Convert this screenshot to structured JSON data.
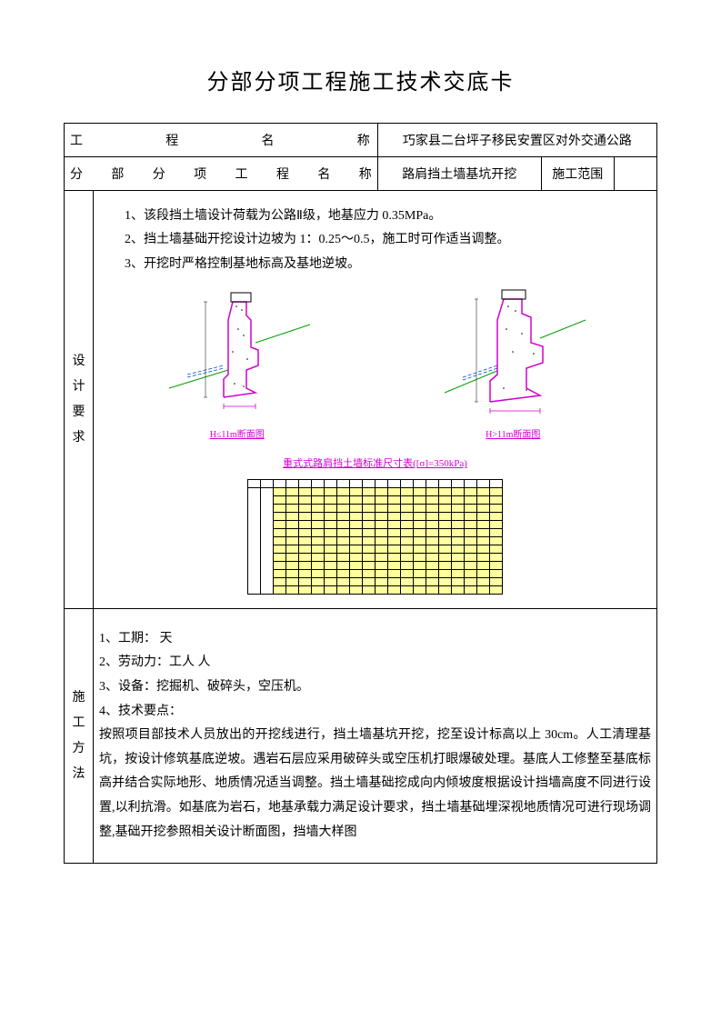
{
  "title": "分部分项工程施工技术交底卡",
  "header": {
    "label_project": "工 程 名 称",
    "value_project": "巧家县二台坪子移民安置区对外交通公路",
    "label_sub": "分部分项工程名称",
    "value_sub": "路肩挡土墙基坑开挖",
    "label_scope": "施工范围",
    "value_scope": ""
  },
  "design": {
    "side_label": "设计要求",
    "lines": [
      "1、该段挡土墙设计荷载为公路Ⅱ级，地基应力 0.35MPa。",
      "2、挡土墙基础开挖设计边坡为 1：0.25～0.5，施工时可作适当调整。",
      "3、开挖时严格控制基地标高及基地逆坡。"
    ],
    "fig1_caption": "H≤11m断面图",
    "fig2_caption": "H>11m断面图",
    "data_table_title": "重式式路肩挡土墙标准尺寸表([σ]=350kPa)",
    "colors": {
      "magenta": "#d000d0",
      "green": "#00a000",
      "blue": "#0050c0",
      "yellow_bg": "#ffffa0"
    },
    "data_table": {
      "cols": 18,
      "rows": 13
    }
  },
  "method": {
    "side_label": "施工方法",
    "lines": [
      "1、工期：  天",
      "2、劳动力：工人   人",
      "3、设备：挖掘机、破碎头，空压机。",
      "4、技术要点："
    ],
    "para": "   按照项目部技术人员放出的开挖线进行，挡土墙基坑开挖，挖至设计标高以上 30cm。人工清理基坑，按设计修筑基底逆坡。遇岩石层应采用破碎头或空压机打眼爆破处理。基底人工修整至基底标高并结合实际地形、地质情况适当调整。挡土墙基础挖成向内倾坡度根据设计挡墙高度不同进行设置,以利抗滑。如基底为岩石，地基承载力满足设计要求，挡土墙基础埋深视地质情况可进行现场调整,基础开挖参照相关设计断面图，挡墙大样图"
  }
}
